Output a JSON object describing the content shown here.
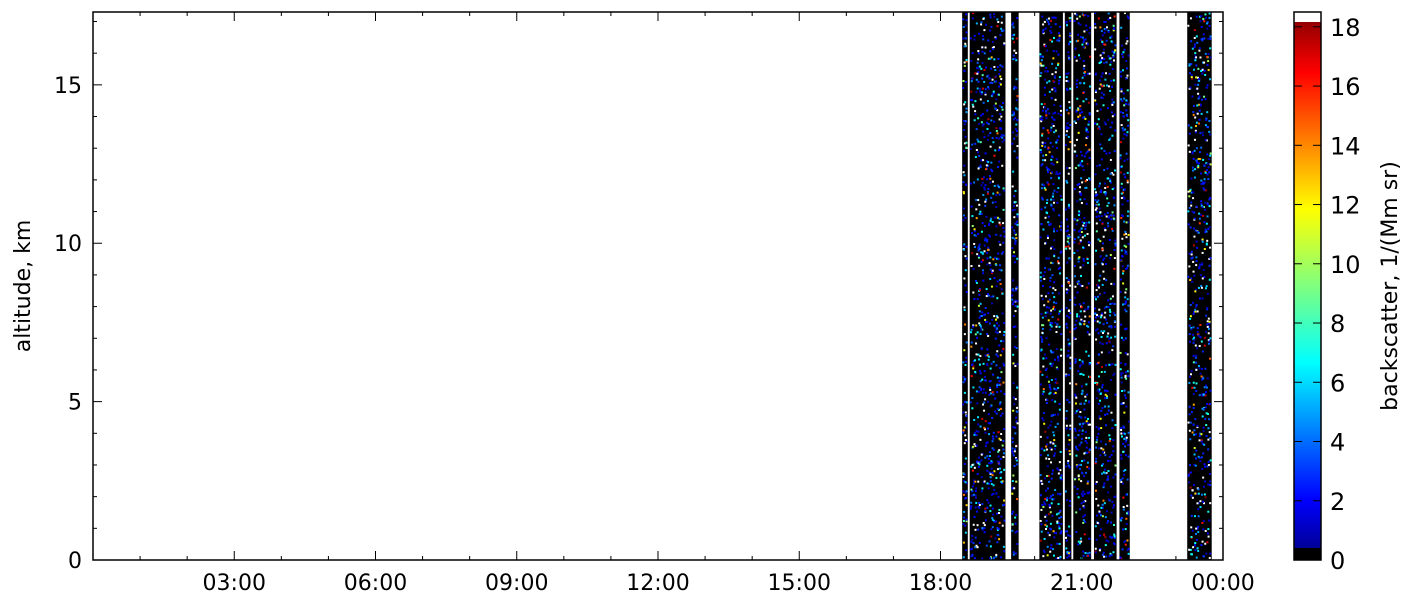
{
  "chart_data": {
    "type": "heatmap",
    "title": "",
    "xlabel": "",
    "ylabel": "altitude, km",
    "x_ticks": [
      "03:00",
      "06:00",
      "09:00",
      "12:00",
      "15:00",
      "18:00",
      "21:00",
      "00:00"
    ],
    "x_tick_hours": [
      3,
      6,
      9,
      12,
      15,
      18,
      21,
      24
    ],
    "xlim_hours": [
      0,
      24
    ],
    "y_ticks": [
      0,
      5,
      10,
      15
    ],
    "ylim": [
      0,
      17.3
    ],
    "colorbar": {
      "label": "backscatter, 1/(Mm sr)",
      "ticks": [
        0,
        2,
        4,
        6,
        8,
        10,
        12,
        14,
        16,
        18
      ],
      "range": [
        0,
        18.5
      ],
      "colormap": "jet"
    },
    "data_segments_hours": [
      [
        18.46,
        18.58
      ],
      [
        18.62,
        19.38
      ],
      [
        19.5,
        19.66
      ],
      [
        20.1,
        20.6
      ],
      [
        20.64,
        20.78
      ],
      [
        20.82,
        21.2
      ],
      [
        21.26,
        21.74
      ],
      [
        21.8,
        22.02
      ],
      [
        23.24,
        23.76
      ]
    ],
    "background_color": "#000000",
    "empty_color": "#ffffff"
  }
}
